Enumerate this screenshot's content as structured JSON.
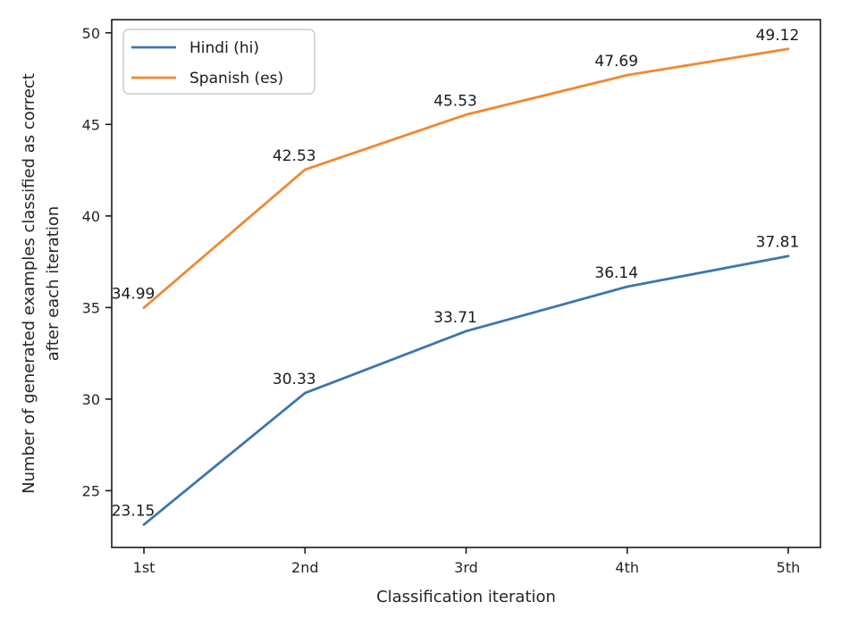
{
  "chart_data": {
    "type": "line",
    "title": "",
    "xlabel": "Classification iteration",
    "ylabel_lines": [
      "Number of generated examples classified as correct",
      "after each iteration"
    ],
    "categories": [
      "1st",
      "2nd",
      "3rd",
      "4th",
      "5th"
    ],
    "series": [
      {
        "name": "Hindi (hi)",
        "color": "#3c76b0",
        "values": [
          23.15,
          30.33,
          33.71,
          36.14,
          37.81
        ]
      },
      {
        "name": "Spanish (es)",
        "color": "#f2882f",
        "values": [
          34.99,
          42.53,
          45.53,
          47.69,
          49.12
        ]
      }
    ],
    "data_labels": {
      "hindi": [
        "23.15",
        "30.33",
        "33.71",
        "36.14",
        "37.81"
      ],
      "spanish": [
        "34.99",
        "42.53",
        "45.53",
        "47.69",
        "49.12"
      ]
    },
    "yticks": [
      25,
      30,
      35,
      40,
      45,
      50
    ],
    "ylim": [
      21.9,
      50.72
    ],
    "xlim": [
      -0.2,
      4.2
    ],
    "legend_position": "upper left",
    "grid": false
  },
  "style": {
    "spine_color": "#1a1a1a",
    "tick_label_color": "#262626",
    "annotation_color": "#1a1a1a",
    "legend_border_color": "#cccccc",
    "background": "#ffffff"
  }
}
